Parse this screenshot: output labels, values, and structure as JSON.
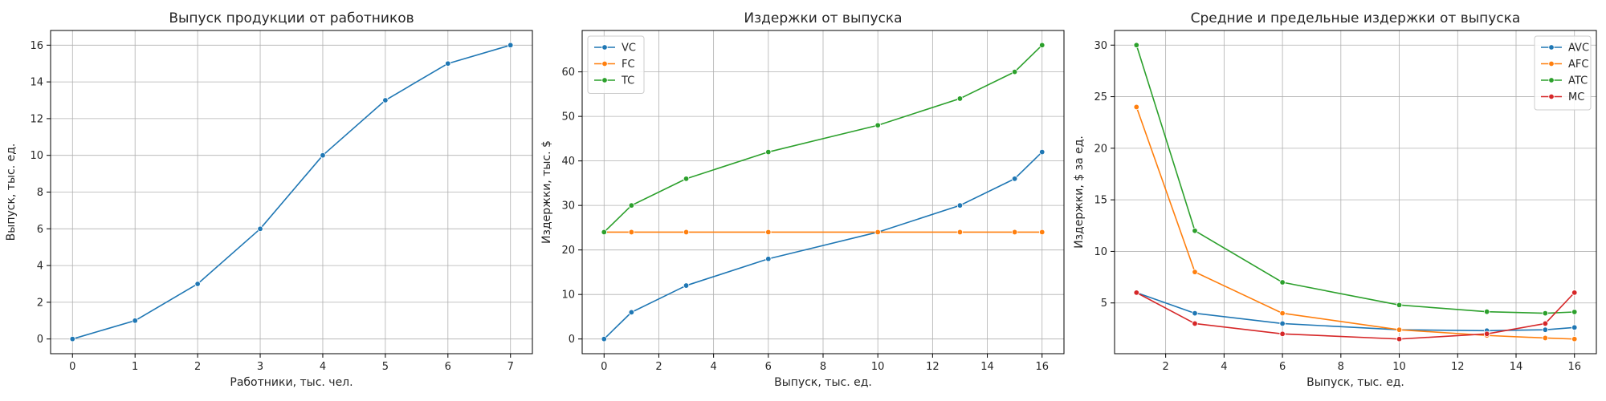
{
  "chart_data": [
    {
      "type": "line",
      "title": "Выпуск продукции от работников",
      "xlabel": "Работники, тыс. чел.",
      "ylabel": "Выпуск, тыс. ед.",
      "xlim": [
        -0.35,
        7.35
      ],
      "ylim": [
        -0.8,
        16.8
      ],
      "xticks": [
        0,
        1,
        2,
        3,
        4,
        5,
        6,
        7
      ],
      "yticks": [
        0,
        2,
        4,
        6,
        8,
        10,
        12,
        14,
        16
      ],
      "grid": true,
      "legend": null,
      "series": [
        {
          "color": "#1f77b4",
          "x": [
            0,
            1,
            2,
            3,
            4,
            5,
            6,
            7
          ],
          "y": [
            0,
            1,
            3,
            6,
            10,
            13,
            15,
            16
          ]
        }
      ]
    },
    {
      "type": "line",
      "title": "Издержки от выпуска",
      "xlabel": "Выпуск, тыс. ед.",
      "ylabel": "Издержки, тыс. $",
      "xlim": [
        -0.8,
        16.8
      ],
      "ylim": [
        -3.3,
        69.3
      ],
      "xticks": [
        0,
        2,
        4,
        6,
        8,
        10,
        12,
        14,
        16
      ],
      "yticks": [
        0,
        10,
        20,
        30,
        40,
        50,
        60
      ],
      "grid": true,
      "legend": "top-left",
      "series": [
        {
          "name": "VC",
          "color": "#1f77b4",
          "x": [
            0,
            1,
            3,
            6,
            10,
            13,
            15,
            16
          ],
          "y": [
            0,
            6,
            12,
            18,
            24,
            30,
            36,
            42
          ]
        },
        {
          "name": "FC",
          "color": "#ff7f0e",
          "x": [
            0,
            1,
            3,
            6,
            10,
            13,
            15,
            16
          ],
          "y": [
            24,
            24,
            24,
            24,
            24,
            24,
            24,
            24
          ]
        },
        {
          "name": "TC",
          "color": "#2ca02c",
          "x": [
            0,
            1,
            3,
            6,
            10,
            13,
            15,
            16
          ],
          "y": [
            24,
            30,
            36,
            42,
            48,
            54,
            60,
            66
          ]
        }
      ]
    },
    {
      "type": "line",
      "title": "Средние и предельные издержки от выпуска",
      "xlabel": "Выпуск, тыс. ед.",
      "ylabel": "Издержки, $ за ед.",
      "xlim": [
        0.25,
        16.75
      ],
      "ylim": [
        0.08,
        31.42
      ],
      "xticks": [
        2,
        4,
        6,
        8,
        10,
        12,
        14,
        16
      ],
      "yticks": [
        5,
        10,
        15,
        20,
        25,
        30
      ],
      "grid": true,
      "legend": "top-right",
      "series": [
        {
          "name": "AVC",
          "color": "#1f77b4",
          "x": [
            1,
            3,
            6,
            10,
            13,
            15,
            16
          ],
          "y": [
            6,
            4,
            3,
            2.4,
            2.31,
            2.4,
            2.625
          ]
        },
        {
          "name": "AFC",
          "color": "#ff7f0e",
          "x": [
            1,
            3,
            6,
            10,
            13,
            15,
            16
          ],
          "y": [
            24,
            8,
            4,
            2.4,
            1.85,
            1.6,
            1.5
          ]
        },
        {
          "name": "ATC",
          "color": "#2ca02c",
          "x": [
            1,
            3,
            6,
            10,
            13,
            15,
            16
          ],
          "y": [
            30,
            12,
            7,
            4.8,
            4.15,
            4,
            4.125
          ]
        },
        {
          "name": "MC",
          "color": "#d62728",
          "x": [
            1,
            3,
            6,
            10,
            13,
            15,
            16
          ],
          "y": [
            6,
            3,
            2,
            1.5,
            2,
            3,
            6
          ]
        }
      ]
    }
  ]
}
